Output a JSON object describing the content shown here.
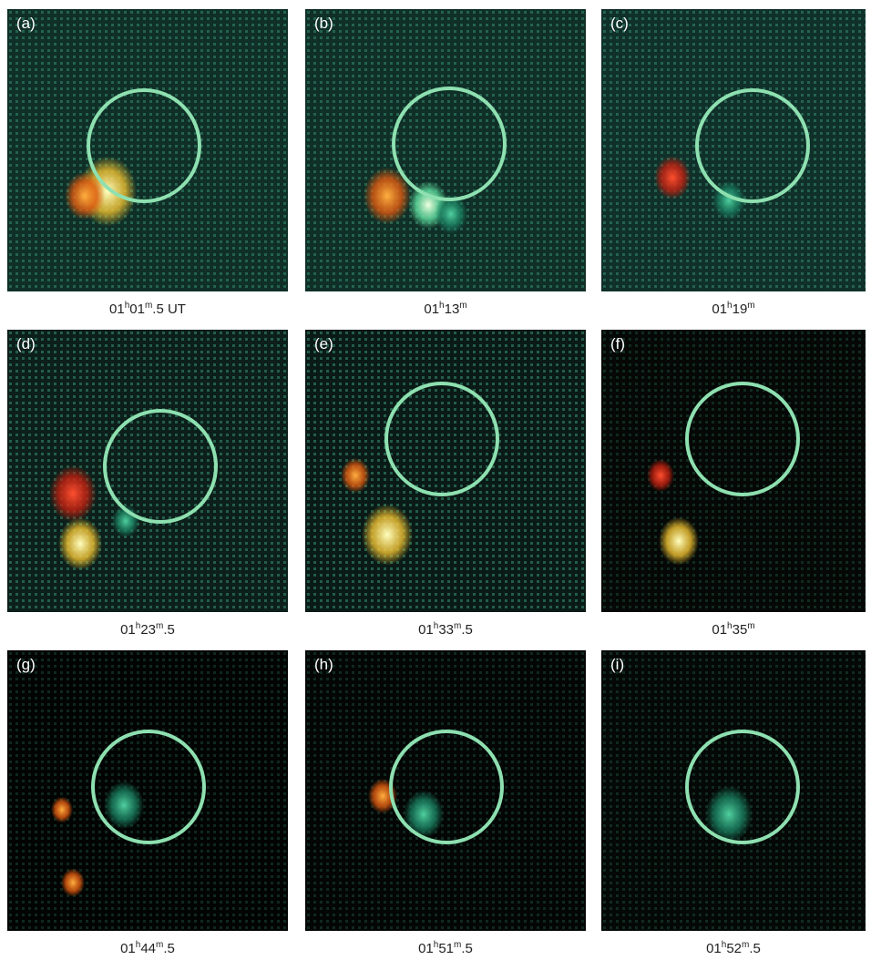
{
  "panels": [
    {
      "label": "(a)",
      "caption": [
        {
          "text": "01"
        },
        {
          "text": "h",
          "sup": true
        },
        {
          "text": "01"
        },
        {
          "text": "m",
          "sup": true
        },
        {
          "text": ".5 UT"
        }
      ]
    },
    {
      "label": "(b)",
      "caption": [
        {
          "text": "01"
        },
        {
          "text": "h",
          "sup": true
        },
        {
          "text": "13"
        },
        {
          "text": "m",
          "sup": true
        }
      ]
    },
    {
      "label": "(c)",
      "caption": [
        {
          "text": "01"
        },
        {
          "text": "h",
          "sup": true
        },
        {
          "text": "19"
        },
        {
          "text": "m",
          "sup": true
        }
      ]
    },
    {
      "label": "(d)",
      "caption": [
        {
          "text": "01"
        },
        {
          "text": "h",
          "sup": true
        },
        {
          "text": "23"
        },
        {
          "text": "m",
          "sup": true
        },
        {
          "text": ".5"
        }
      ]
    },
    {
      "label": "(e)",
      "caption": [
        {
          "text": "01"
        },
        {
          "text": "h",
          "sup": true
        },
        {
          "text": "33"
        },
        {
          "text": "m",
          "sup": true
        },
        {
          "text": ".5"
        }
      ]
    },
    {
      "label": "(f)",
      "caption": [
        {
          "text": "01"
        },
        {
          "text": "h",
          "sup": true
        },
        {
          "text": "35"
        },
        {
          "text": "m",
          "sup": true
        }
      ]
    },
    {
      "label": "(g)",
      "caption": [
        {
          "text": "01"
        },
        {
          "text": "h",
          "sup": true
        },
        {
          "text": "44"
        },
        {
          "text": "m",
          "sup": true
        },
        {
          "text": ".5"
        }
      ]
    },
    {
      "label": "(h)",
      "caption": [
        {
          "text": "01"
        },
        {
          "text": "h",
          "sup": true
        },
        {
          "text": "51"
        },
        {
          "text": "m",
          "sup": true
        },
        {
          "text": ".5"
        }
      ]
    },
    {
      "label": "(i)",
      "caption": [
        {
          "text": "01"
        },
        {
          "text": "h",
          "sup": true
        },
        {
          "text": "52"
        },
        {
          "text": "m",
          "sup": true
        },
        {
          "text": ".5"
        }
      ]
    }
  ]
}
